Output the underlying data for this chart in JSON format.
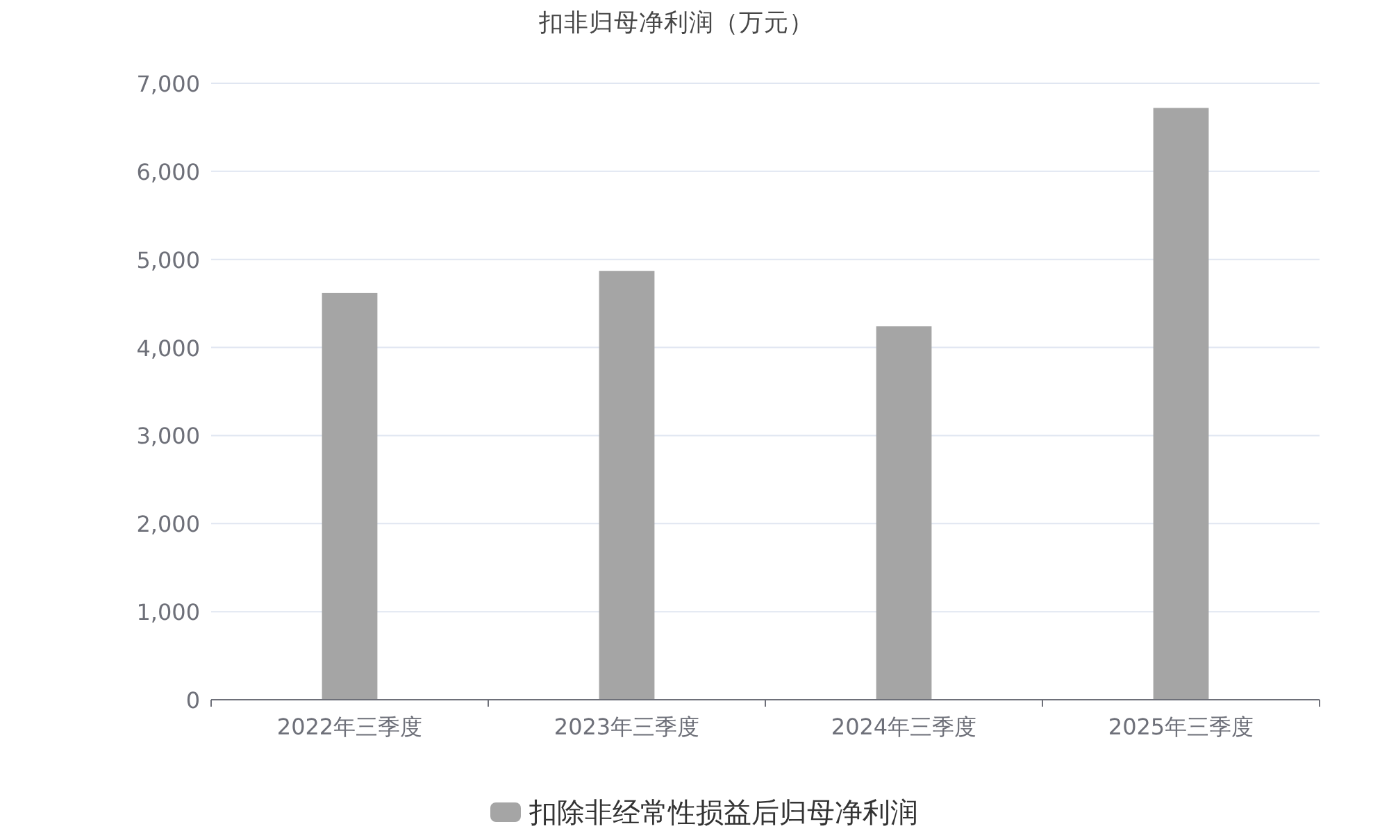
{
  "chart_data": {
    "type": "bar",
    "title": "扣非归母净利润（万元）",
    "categories": [
      "2022年三季度",
      "2023年三季度",
      "2024年三季度",
      "2025年三季度"
    ],
    "series": [
      {
        "name": "扣除非经常性损益后归母净利润",
        "color": "#a5a5a5",
        "values": [
          4620,
          4870,
          4240,
          6720
        ]
      }
    ],
    "ylim": [
      0,
      7000
    ],
    "yticks": [
      0,
      {
        "value": 1000,
        "label": "1,000"
      },
      {
        "value": 2000,
        "label": "2,000"
      },
      {
        "value": 3000,
        "label": "3,000"
      },
      {
        "value": 4000,
        "label": "4,000"
      },
      {
        "value": 5000,
        "label": "5,000"
      },
      {
        "value": 6000,
        "label": "6,000"
      },
      {
        "value": 7000,
        "label": "7,000"
      }
    ],
    "grid": "y",
    "legend": "bottom"
  }
}
